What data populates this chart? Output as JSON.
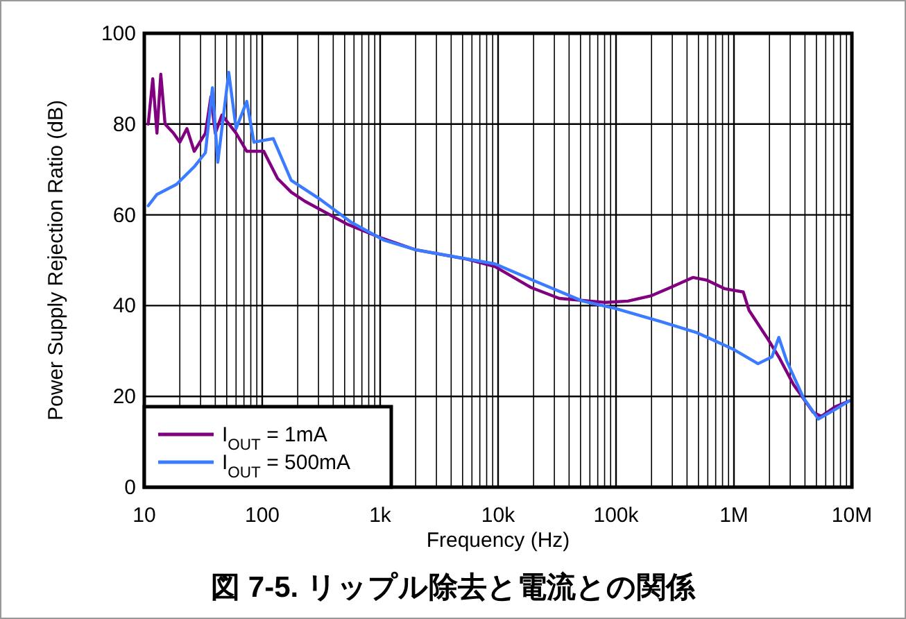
{
  "chart_data": {
    "type": "line",
    "xlabel": "Frequency (Hz)",
    "ylabel": "Power Supply Rejection Ratio (dB)",
    "annotations": [
      "図 7-5. リップル除去と電流との関係"
    ],
    "log": "x",
    "grid": true,
    "legend": "bottom left",
    "line_style": "solid",
    "marker": "none",
    "xlim": [
      10,
      10000000
    ],
    "ylim": [
      0,
      100
    ],
    "xticks": [
      10,
      100,
      {
        "value": 1000,
        "label": "1k"
      },
      {
        "value": 10000,
        "label": "10k"
      },
      {
        "value": 100000,
        "label": "100k"
      },
      {
        "value": 1000000,
        "label": "1M"
      },
      {
        "value": 10000000,
        "label": "10M"
      }
    ],
    "yticks": [
      0,
      20,
      40,
      60,
      80,
      100
    ],
    "series": [
      {
        "name": "I$_{OUT}$ = 1mA",
        "color": "#800080",
        "x": [
          10.8,
          11.8,
          12.8,
          13.8,
          15,
          17.7,
          20,
          23,
          26.5,
          33,
          36.7,
          40,
          45.5,
          60,
          74,
          85,
          103,
          135,
          176,
          230,
          520,
          1000,
          2000,
          5500,
          9400,
          19000,
          33000,
          82000,
          126000,
          200000,
          290000,
          450000,
          590000,
          840000,
          1200000,
          1340000,
          1900000,
          2400000,
          3200000,
          4700000,
          5500000,
          7200000,
          9500000
        ],
        "values": [
          80,
          90,
          78,
          91,
          80,
          78,
          76,
          79,
          74,
          78,
          86,
          78,
          82,
          78,
          74,
          74,
          74,
          68,
          65,
          63,
          58,
          55,
          52.3,
          50.2,
          48.6,
          44,
          41.6,
          40.7,
          41,
          42.2,
          44,
          46.2,
          45.6,
          43.7,
          43,
          39,
          33,
          28.7,
          22.6,
          16.5,
          15.6,
          17.7,
          19
        ]
      },
      {
        "name": "I$_{OUT}$ = 500mA",
        "color": "#3a7bff",
        "x": [
          10.8,
          12.8,
          18.7,
          26.5,
          33,
          37.8,
          42,
          52,
          60,
          74,
          85,
          124,
          176,
          303,
          565,
          1080,
          2000,
          9400,
          21000,
          52000,
          98000,
          245000,
          490000,
          1000000,
          1600000,
          2100000,
          2400000,
          2800000,
          3900000,
          5200000,
          7200000,
          9500000
        ],
        "values": [
          62,
          64.5,
          66.7,
          70.6,
          73.7,
          88,
          71.6,
          91.4,
          79,
          85,
          76,
          76.8,
          67.6,
          63.6,
          58.4,
          54.4,
          52.3,
          49.2,
          45.3,
          41,
          39.4,
          36.4,
          34,
          30.3,
          27.2,
          28.7,
          33,
          27.8,
          19.6,
          15,
          17.1,
          19
        ]
      }
    ]
  }
}
